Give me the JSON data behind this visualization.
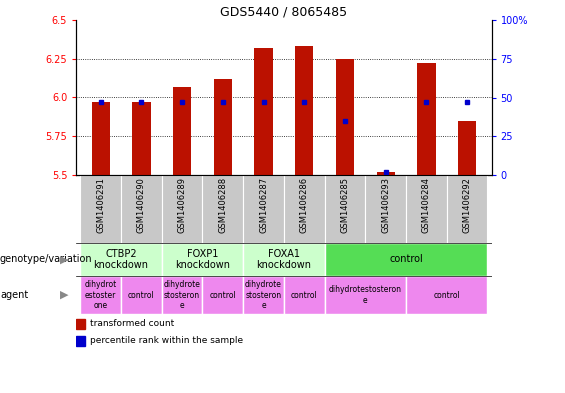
{
  "title": "GDS5440 / 8065485",
  "samples": [
    "GSM1406291",
    "GSM1406290",
    "GSM1406289",
    "GSM1406288",
    "GSM1406287",
    "GSM1406286",
    "GSM1406285",
    "GSM1406293",
    "GSM1406284",
    "GSM1406292"
  ],
  "transformed_count": [
    5.97,
    5.97,
    6.07,
    6.12,
    6.32,
    6.33,
    6.25,
    5.52,
    6.22,
    5.85
  ],
  "percentile_rank": [
    47,
    47,
    47,
    47,
    47,
    47,
    35,
    2,
    47,
    47
  ],
  "ymin": 5.5,
  "ymax": 6.5,
  "y_ticks_left": [
    5.5,
    5.75,
    6.0,
    6.25,
    6.5
  ],
  "y_ticks_right": [
    0,
    25,
    50,
    75,
    100
  ],
  "bar_color": "#bb1100",
  "dot_color": "#0000cc",
  "genotype_groups": [
    {
      "label": "CTBP2\nknockdown",
      "start": 0,
      "end": 2,
      "color": "#ccffcc"
    },
    {
      "label": "FOXP1\nknockdown",
      "start": 2,
      "end": 4,
      "color": "#ccffcc"
    },
    {
      "label": "FOXA1\nknockdown",
      "start": 4,
      "end": 6,
      "color": "#ccffcc"
    },
    {
      "label": "control",
      "start": 6,
      "end": 10,
      "color": "#55dd55"
    }
  ],
  "agent_groups": [
    {
      "label": "dihydrot\nestoster\none",
      "start": 0,
      "end": 1,
      "color": "#ee88ee"
    },
    {
      "label": "control",
      "start": 1,
      "end": 2,
      "color": "#ee88ee"
    },
    {
      "label": "dihydrote\nstosteron\ne",
      "start": 2,
      "end": 3,
      "color": "#ee88ee"
    },
    {
      "label": "control",
      "start": 3,
      "end": 4,
      "color": "#ee88ee"
    },
    {
      "label": "dihydrote\nstosteron\ne",
      "start": 4,
      "end": 5,
      "color": "#ee88ee"
    },
    {
      "label": "control",
      "start": 5,
      "end": 6,
      "color": "#ee88ee"
    },
    {
      "label": "dihydrotestosteron\ne",
      "start": 6,
      "end": 8,
      "color": "#ee88ee"
    },
    {
      "label": "control",
      "start": 8,
      "end": 10,
      "color": "#ee88ee"
    }
  ],
  "bar_width": 0.45,
  "sample_fontsize": 6,
  "title_fontsize": 9,
  "tick_fontsize": 7,
  "label_fontsize": 7,
  "geno_fontsize": 7,
  "agent_fontsize": 5.5
}
